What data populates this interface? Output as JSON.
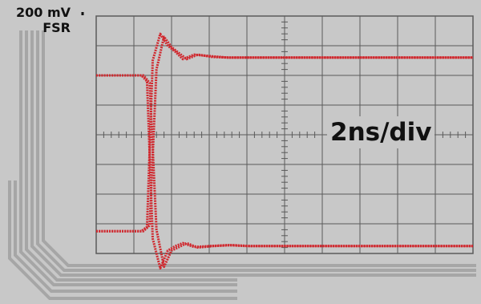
{
  "labels": {
    "vertical_scale": "200 mV",
    "vertical_unit": "FSR",
    "timebase": "2ns/div"
  },
  "colors": {
    "background": "#c8c8c8",
    "grid": "#5a5a5a",
    "trace": "#d0282e",
    "traces_leads": "#a6a6a6"
  },
  "chart_data": {
    "type": "line",
    "title": "",
    "xlabel": "",
    "ylabel": "",
    "grid": true,
    "x_divisions": 10,
    "y_divisions": 8,
    "xlim": [
      0,
      10
    ],
    "ylim": [
      0,
      8
    ],
    "series": [
      {
        "x": [
          0,
          1.2,
          1.35,
          1.5,
          1.7,
          1.9,
          2.1,
          2.3,
          2.6,
          3.0,
          3.5,
          4.0,
          10
        ],
        "values": [
          6.0,
          6.0,
          5.8,
          0.5,
          -0.5,
          0.1,
          0.25,
          0.35,
          0.22,
          0.25,
          0.28,
          0.25,
          0.25
        ]
      },
      {
        "x": [
          0,
          1.2,
          1.35,
          1.5,
          1.7,
          1.9,
          2.1,
          2.3,
          2.6,
          3.0,
          3.5,
          4.0,
          10
        ],
        "values": [
          0.75,
          0.75,
          0.9,
          6.5,
          7.4,
          7.0,
          6.8,
          6.55,
          6.7,
          6.65,
          6.6,
          6.6,
          6.6
        ]
      },
      {
        "x": [
          0,
          1.25,
          1.42,
          1.6,
          1.8,
          2.0,
          2.2,
          2.4,
          2.7,
          3.1,
          3.6,
          4.1,
          10
        ],
        "values": [
          0.75,
          0.75,
          0.95,
          6.2,
          7.3,
          6.95,
          6.75,
          6.55,
          6.7,
          6.62,
          6.6,
          6.6,
          6.6
        ]
      },
      {
        "x": [
          0,
          1.25,
          1.42,
          1.6,
          1.8,
          2.0,
          2.2,
          2.4,
          2.7,
          3.1,
          3.6,
          4.1,
          10
        ],
        "values": [
          6.0,
          6.0,
          5.75,
          0.8,
          -0.45,
          0.1,
          0.22,
          0.35,
          0.2,
          0.25,
          0.28,
          0.25,
          0.25
        ]
      }
    ]
  }
}
